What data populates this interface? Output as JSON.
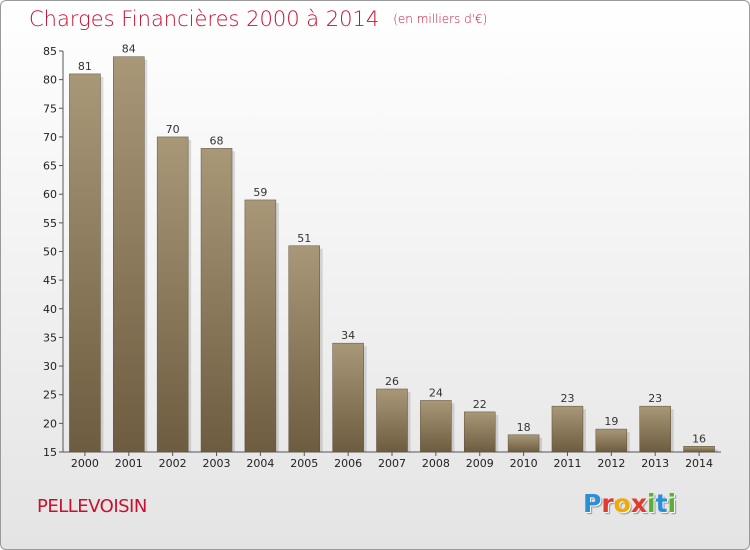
{
  "chart_data": {
    "type": "bar",
    "title": "Charges Financières 2000 à 2014",
    "subtitle": "(en milliers d'€)",
    "categories": [
      "2000",
      "2001",
      "2002",
      "2003",
      "2004",
      "2005",
      "2006",
      "2007",
      "2008",
      "2009",
      "2010",
      "2011",
      "2012",
      "2013",
      "2014"
    ],
    "values": [
      81,
      84,
      70,
      68,
      59,
      51,
      34,
      26,
      24,
      22,
      18,
      23,
      19,
      23,
      16
    ],
    "ylim": [
      15,
      85
    ],
    "yticks": [
      15,
      20,
      25,
      30,
      35,
      40,
      45,
      50,
      55,
      60,
      65,
      70,
      75,
      80,
      85
    ],
    "grid": false,
    "bar_colors": {
      "top": "#a89878",
      "bottom": "#6e5c40"
    }
  },
  "footer": {
    "commune": "PELLEVOISIN",
    "logo": {
      "letters": [
        {
          "char": "P",
          "color": "#2a8fd4"
        },
        {
          "char": "r",
          "color": "#e23b2e"
        },
        {
          "char": "o",
          "color": "#f2a900"
        },
        {
          "char": "x",
          "color": "#e23b2e"
        },
        {
          "char": "i",
          "color": "#5cb030"
        },
        {
          "char": "t",
          "color": "#2a8fd4"
        },
        {
          "char": "i",
          "color": "#5cb030"
        }
      ]
    }
  }
}
